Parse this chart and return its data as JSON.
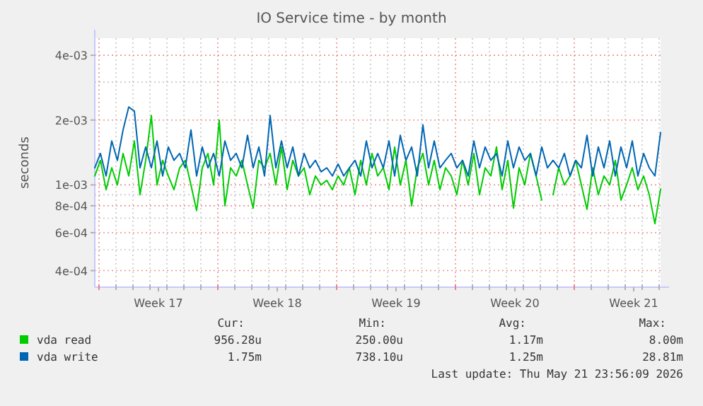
{
  "chart_data": {
    "type": "line",
    "title": "IO Service time - by month",
    "ylabel": "seconds",
    "log": "y",
    "grid": true,
    "legend": "bottom",
    "line_style": "solid",
    "marker": "none",
    "xlim": [
      "2026-04-19T18:00",
      "2026-05-23T02:00"
    ],
    "xticks": [
      {
        "value": "2026-04-20T00:00",
        "label": null
      },
      {
        "value": "2026-04-21T00:00",
        "label": null
      },
      {
        "value": "2026-04-22T00:00",
        "label": null
      },
      {
        "value": "2026-04-23T00:00",
        "label": null
      },
      {
        "value": "2026-04-24T00:00",
        "label": null
      },
      {
        "value": "2026-04-25T00:00",
        "label": null
      },
      {
        "value": "2026-04-26T00:00",
        "label": null
      },
      {
        "value": "2026-04-27T00:00",
        "label": null
      },
      {
        "value": "2026-04-28T00:00",
        "label": null
      },
      {
        "value": "2026-04-29T00:00",
        "label": null
      },
      {
        "value": "2026-04-30T00:00",
        "label": null
      },
      {
        "value": "2026-05-01T00:00",
        "label": null
      },
      {
        "value": "2026-05-02T00:00",
        "label": null
      },
      {
        "value": "2026-05-03T00:00",
        "label": null
      },
      {
        "value": "2026-05-04T00:00",
        "label": null
      },
      {
        "value": "2026-05-05T00:00",
        "label": null
      },
      {
        "value": "2026-05-06T00:00",
        "label": null
      },
      {
        "value": "2026-05-07T00:00",
        "label": null
      },
      {
        "value": "2026-05-08T00:00",
        "label": null
      },
      {
        "value": "2026-05-09T00:00",
        "label": null
      },
      {
        "value": "2026-05-10T00:00",
        "label": null
      },
      {
        "value": "2026-05-11T00:00",
        "label": null
      },
      {
        "value": "2026-05-12T00:00",
        "label": null
      },
      {
        "value": "2026-05-13T00:00",
        "label": null
      },
      {
        "value": "2026-05-14T00:00",
        "label": null
      },
      {
        "value": "2026-05-15T00:00",
        "label": null
      },
      {
        "value": "2026-05-16T00:00",
        "label": null
      },
      {
        "value": "2026-05-17T00:00",
        "label": null
      },
      {
        "value": "2026-05-18T00:00",
        "label": null
      },
      {
        "value": "2026-05-19T00:00",
        "label": null
      },
      {
        "value": "2026-05-20T00:00",
        "label": null
      },
      {
        "value": "2026-05-21T00:00",
        "label": null
      },
      {
        "value": "2026-05-22T00:00",
        "label": null
      },
      {
        "value": "2026-05-23T00:00",
        "label": null
      },
      {
        "value": "2026-04-23T12:00",
        "label": "Week 17"
      },
      {
        "value": "2026-04-30T12:00",
        "label": "Week 18"
      },
      {
        "value": "2026-05-07T12:00",
        "label": "Week 19"
      },
      {
        "value": "2026-05-14T12:00",
        "label": "Week 20"
      },
      {
        "value": "2026-05-21T12:00",
        "label": "Week 21"
      }
    ],
    "ylim": [
      0.000335,
      0.0048
    ],
    "yticks": [
      {
        "value": 0.004,
        "label": "4e-03"
      },
      {
        "value": 0.003,
        "label": null
      },
      {
        "value": 0.002,
        "label": "2e-03"
      },
      {
        "value": 0.001,
        "label": "1e-03"
      },
      {
        "value": 0.0009,
        "label": null
      },
      {
        "value": 0.0008,
        "label": "8e-04"
      },
      {
        "value": 0.0007,
        "label": null
      },
      {
        "value": 0.0006,
        "label": "6e-04"
      },
      {
        "value": 0.0005,
        "label": null
      },
      {
        "value": 0.0004,
        "label": "4e-04"
      }
    ],
    "x": [
      "2026-04-19T18:00",
      "2026-04-20T02:00",
      "2026-04-20T10:00",
      "2026-04-20T18:00",
      "2026-04-21T02:00",
      "2026-04-21T10:00",
      "2026-04-21T18:00",
      "2026-04-22T02:00",
      "2026-04-22T10:00",
      "2026-04-22T18:00",
      "2026-04-23T02:00",
      "2026-04-23T10:00",
      "2026-04-23T18:00",
      "2026-04-24T02:00",
      "2026-04-24T10:00",
      "2026-04-24T18:00",
      "2026-04-25T02:00",
      "2026-04-25T10:00",
      "2026-04-25T18:00",
      "2026-04-26T02:00",
      "2026-04-26T10:00",
      "2026-04-26T18:00",
      "2026-04-27T02:00",
      "2026-04-27T10:00",
      "2026-04-27T18:00",
      "2026-04-28T02:00",
      "2026-04-28T10:00",
      "2026-04-28T18:00",
      "2026-04-29T02:00",
      "2026-04-29T10:00",
      "2026-04-29T18:00",
      "2026-04-30T02:00",
      "2026-04-30T10:00",
      "2026-04-30T18:00",
      "2026-05-01T02:00",
      "2026-05-01T10:00",
      "2026-05-01T18:00",
      "2026-05-02T02:00",
      "2026-05-02T10:00",
      "2026-05-02T18:00",
      "2026-05-03T02:00",
      "2026-05-03T10:00",
      "2026-05-03T18:00",
      "2026-05-04T02:00",
      "2026-05-04T10:00",
      "2026-05-04T18:00",
      "2026-05-05T02:00",
      "2026-05-05T10:00",
      "2026-05-05T18:00",
      "2026-05-06T02:00",
      "2026-05-06T10:00",
      "2026-05-06T18:00",
      "2026-05-07T02:00",
      "2026-05-07T10:00",
      "2026-05-07T18:00",
      "2026-05-08T02:00",
      "2026-05-08T10:00",
      "2026-05-08T18:00",
      "2026-05-09T02:00",
      "2026-05-09T10:00",
      "2026-05-09T18:00",
      "2026-05-10T02:00",
      "2026-05-10T10:00",
      "2026-05-10T18:00",
      "2026-05-11T02:00",
      "2026-05-11T10:00",
      "2026-05-11T18:00",
      "2026-05-12T02:00",
      "2026-05-12T10:00",
      "2026-05-12T18:00",
      "2026-05-13T02:00",
      "2026-05-13T10:00",
      "2026-05-13T18:00",
      "2026-05-14T02:00",
      "2026-05-14T10:00",
      "2026-05-14T18:00",
      "2026-05-15T02:00",
      "2026-05-15T10:00",
      "2026-05-15T18:00",
      "2026-05-16T02:00",
      "2026-05-16T10:00",
      "2026-05-16T18:00",
      "2026-05-17T02:00",
      "2026-05-17T10:00",
      "2026-05-17T18:00",
      "2026-05-18T02:00",
      "2026-05-18T10:00",
      "2026-05-18T18:00",
      "2026-05-19T02:00",
      "2026-05-19T10:00",
      "2026-05-19T18:00",
      "2026-05-20T02:00",
      "2026-05-20T10:00",
      "2026-05-20T18:00",
      "2026-05-21T02:00",
      "2026-05-21T10:00",
      "2026-05-21T18:00",
      "2026-05-22T02:00",
      "2026-05-22T10:00",
      "2026-05-22T18:00",
      "2026-05-23T02:00"
    ],
    "series": [
      {
        "name": "vda read",
        "color": "#00cc00",
        "values": [
          0.0011,
          0.0013,
          0.00095,
          0.0012,
          0.001,
          0.0014,
          0.0011,
          0.0016,
          0.0009,
          0.0013,
          0.0021,
          0.001,
          0.0013,
          0.0011,
          0.00095,
          0.0012,
          0.0013,
          0.001,
          0.00076,
          0.0012,
          0.0014,
          0.001,
          0.002,
          0.0008,
          0.0012,
          0.0011,
          0.0013,
          0.001,
          0.00078,
          0.0013,
          0.0012,
          0.0014,
          0.001,
          0.0015,
          0.00095,
          0.0013,
          0.0011,
          0.0012,
          0.0009,
          0.0011,
          0.001,
          0.00105,
          0.00095,
          0.0011,
          0.001,
          0.0012,
          0.0009,
          0.0013,
          0.001,
          0.0014,
          0.0011,
          0.0012,
          0.00095,
          0.0015,
          0.001,
          0.0013,
          0.0008,
          0.0012,
          0.0014,
          0.001,
          0.0013,
          0.00095,
          0.0012,
          0.0011,
          0.0009,
          0.0013,
          0.001,
          0.0014,
          0.0009,
          0.0012,
          0.0011,
          0.0015,
          0.00095,
          0.0013,
          0.00078,
          0.0012,
          0.001,
          0.0014,
          0.0011,
          0.00085,
          null,
          0.0009,
          0.0012,
          0.001,
          0.0011,
          0.0013,
          0.001,
          0.00077,
          0.0012,
          0.0009,
          0.0011,
          0.001,
          0.0013,
          0.00085,
          0.001,
          0.0012,
          0.00095,
          0.0011,
          0.0009,
          0.00066,
          0.000956
        ]
      },
      {
        "name": "vda write",
        "color": "#0066b3",
        "values": [
          0.0012,
          0.0014,
          0.0011,
          0.0016,
          0.0013,
          0.0018,
          0.0023,
          0.0022,
          0.0012,
          0.0015,
          0.0012,
          0.0016,
          0.0011,
          0.0015,
          0.0013,
          0.0014,
          0.0012,
          0.0018,
          0.0011,
          0.0015,
          0.0012,
          0.0014,
          0.0011,
          0.0016,
          0.0013,
          0.0014,
          0.0012,
          0.0017,
          0.0012,
          0.0015,
          0.0011,
          0.0021,
          0.0012,
          0.0016,
          0.0012,
          0.0015,
          0.0011,
          0.0014,
          0.0012,
          0.0013,
          0.00115,
          0.0012,
          0.0011,
          0.00125,
          0.0011,
          0.0012,
          0.0013,
          0.0011,
          0.0016,
          0.0012,
          0.0014,
          0.0012,
          0.0016,
          0.0011,
          0.0017,
          0.0013,
          0.0015,
          0.0011,
          0.0019,
          0.0012,
          0.0016,
          0.0012,
          0.0013,
          0.0014,
          0.0012,
          0.0013,
          0.0011,
          0.0016,
          0.0012,
          0.0015,
          0.0013,
          0.0014,
          0.0011,
          0.0016,
          0.0012,
          0.0015,
          0.0013,
          0.0014,
          0.0011,
          0.0015,
          0.0012,
          0.0013,
          0.0012,
          0.0014,
          0.0011,
          0.0013,
          0.0012,
          0.0017,
          0.0011,
          0.0015,
          0.0012,
          0.0016,
          0.0011,
          0.0015,
          0.0012,
          0.0016,
          0.0011,
          0.0014,
          0.0012,
          0.0011,
          0.00175
        ]
      }
    ],
    "annotations": [
      "Cur:",
      "Min:",
      "Avg:",
      "Max:",
      "956.28u",
      "250.00u",
      "1.17m",
      "8.00m",
      "1.75m",
      "738.10u",
      "1.25m",
      "28.81m",
      "Last update: Thu May 21 23:56:09 2026"
    ]
  }
}
